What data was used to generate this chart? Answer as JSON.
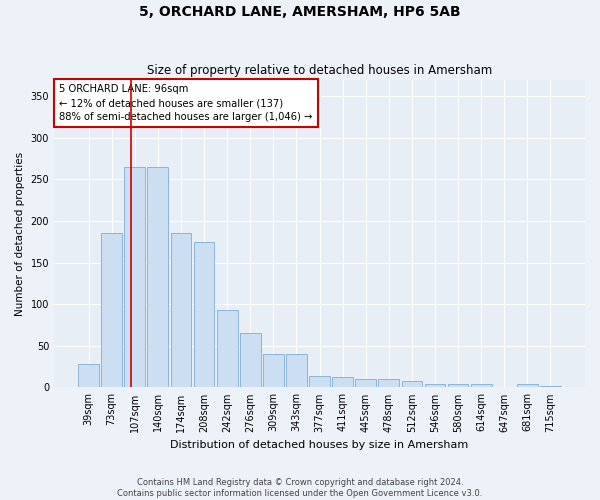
{
  "title": "5, ORCHARD LANE, AMERSHAM, HP6 5AB",
  "subtitle": "Size of property relative to detached houses in Amersham",
  "xlabel": "Distribution of detached houses by size in Amersham",
  "ylabel": "Number of detached properties",
  "categories": [
    "39sqm",
    "73sqm",
    "107sqm",
    "140sqm",
    "174sqm",
    "208sqm",
    "242sqm",
    "276sqm",
    "309sqm",
    "343sqm",
    "377sqm",
    "411sqm",
    "445sqm",
    "478sqm",
    "512sqm",
    "546sqm",
    "580sqm",
    "614sqm",
    "647sqm",
    "681sqm",
    "715sqm"
  ],
  "values": [
    28,
    185,
    265,
    265,
    185,
    175,
    93,
    65,
    40,
    40,
    14,
    12,
    10,
    10,
    8,
    4,
    4,
    4,
    1,
    4,
    2
  ],
  "bar_color": "#ccdff2",
  "bar_edge_color": "#8ab4d8",
  "vline_x": 1.85,
  "vline_color": "#cc0000",
  "annotation_text": "5 ORCHARD LANE: 96sqm\n← 12% of detached houses are smaller (137)\n88% of semi-detached houses are larger (1,046) →",
  "annotation_box_color": "#ffffff",
  "annotation_box_edge": "#cc0000",
  "footer_line1": "Contains HM Land Registry data © Crown copyright and database right 2024.",
  "footer_line2": "Contains public sector information licensed under the Open Government Licence v3.0.",
  "ylim": [
    0,
    370
  ],
  "yticks": [
    0,
    50,
    100,
    150,
    200,
    250,
    300,
    350
  ],
  "background_color": "#edf2f9",
  "plot_bg_color": "#e8eef6",
  "title_fontsize": 10,
  "subtitle_fontsize": 8.5,
  "tick_fontsize": 7,
  "ylabel_fontsize": 7.5,
  "xlabel_fontsize": 8,
  "footer_fontsize": 6,
  "annot_fontsize": 7.2
}
